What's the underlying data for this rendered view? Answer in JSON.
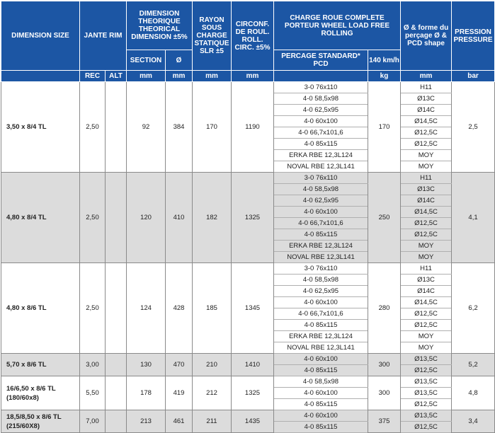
{
  "headers": {
    "dimension": "DIMENSION SIZE",
    "jante": "JANTE RIM",
    "dimension_theo": "DIMENSION THEORIQUE THEORICAL DIMENSION ±5%",
    "rayon": "RAYON SOUS CHARGE STATIQUE SLR ±5",
    "circonf": "CIRCONF. DE ROUL. ROLL. CIRC. ±5%",
    "charge": "CHARGE ROUE COMPLETE PORTEUR WHEEL LOAD FREE ROLLING",
    "forme": "Ø & forme du perçage Ø & PCD shape",
    "pression": "PRESSION PRESSURE",
    "section": "SECTION",
    "diam": "Ø",
    "percage": "PERCAGE STANDARD* PCD",
    "speed": "140 km/h",
    "rec": "REC",
    "alt": "ALT",
    "u_section": "mm",
    "u_diam": "mm",
    "u_rayon": "mm",
    "u_circ": "mm",
    "u_load": "kg",
    "u_forme": "mm",
    "u_pression": "bar"
  },
  "groups": [
    {
      "size": "3,50 x 8/4 TL",
      "rec": "2,50",
      "alt": "",
      "section": "92",
      "diameter": "384",
      "slr": "170",
      "circ": "1190",
      "load": "170",
      "pressure": "2,5",
      "shaded": false,
      "pcd": [
        {
          "pattern": "3-0 76x110",
          "shape": "H11"
        },
        {
          "pattern": "4-0 58,5x98",
          "shape": "Ø13C"
        },
        {
          "pattern": "4-0 62,5x95",
          "shape": "Ø14C"
        },
        {
          "pattern": "4-0 60x100",
          "shape": "Ø14,5C"
        },
        {
          "pattern": "4-0 66,7x101,6",
          "shape": "Ø12,5C"
        },
        {
          "pattern": "4-0 85x115",
          "shape": "Ø12,5C"
        },
        {
          "pattern": "ERKA RBE 12,3L124",
          "shape": "MOY"
        },
        {
          "pattern": "NOVAL RBE 12,3L141",
          "shape": "MOY"
        }
      ]
    },
    {
      "size": "4,80 x 8/4 TL",
      "rec": "2,50",
      "alt": "",
      "section": "120",
      "diameter": "410",
      "slr": "182",
      "circ": "1325",
      "load": "250",
      "pressure": "4,1",
      "shaded": true,
      "pcd": [
        {
          "pattern": "3-0 76x110",
          "shape": "H11"
        },
        {
          "pattern": "4-0 58,5x98",
          "shape": "Ø13C"
        },
        {
          "pattern": "4-0 62,5x95",
          "shape": "Ø14C"
        },
        {
          "pattern": "4-0 60x100",
          "shape": "Ø14,5C"
        },
        {
          "pattern": "4-0 66,7x101,6",
          "shape": "Ø12,5C"
        },
        {
          "pattern": "4-0 85x115",
          "shape": "Ø12,5C"
        },
        {
          "pattern": "ERKA RBE 12,3L124",
          "shape": "MOY"
        },
        {
          "pattern": "NOVAL RBE 12,3L141",
          "shape": "MOY"
        }
      ]
    },
    {
      "size": "4,80 x 8/6 TL",
      "rec": "2,50",
      "alt": "",
      "section": "124",
      "diameter": "428",
      "slr": "185",
      "circ": "1345",
      "load": "280",
      "pressure": "6,2",
      "shaded": false,
      "pcd": [
        {
          "pattern": "3-0 76x110",
          "shape": "H11"
        },
        {
          "pattern": "4-0 58,5x98",
          "shape": "Ø13C"
        },
        {
          "pattern": "4-0 62,5x95",
          "shape": "Ø14C"
        },
        {
          "pattern": "4-0 60x100",
          "shape": "Ø14,5C"
        },
        {
          "pattern": "4-0 66,7x101,6",
          "shape": "Ø12,5C"
        },
        {
          "pattern": "4-0 85x115",
          "shape": "Ø12,5C"
        },
        {
          "pattern": "ERKA RBE 12,3L124",
          "shape": "MOY"
        },
        {
          "pattern": "NOVAL RBE 12,3L141",
          "shape": "MOY"
        }
      ]
    },
    {
      "size": "5,70 x 8/6 TL",
      "rec": "3,00",
      "alt": "",
      "section": "130",
      "diameter": "470",
      "slr": "210",
      "circ": "1410",
      "load": "300",
      "pressure": "5,2",
      "shaded": true,
      "pcd": [
        {
          "pattern": "4-0 60x100",
          "shape": "Ø13,5C"
        },
        {
          "pattern": "4-0 85x115",
          "shape": "Ø12,5C"
        }
      ]
    },
    {
      "size": "16/6,50 x 8/6 TL (180/60x8)",
      "rec": "5,50",
      "alt": "",
      "section": "178",
      "diameter": "419",
      "slr": "212",
      "circ": "1325",
      "load": "300",
      "pressure": "4,8",
      "shaded": false,
      "pcd": [
        {
          "pattern": "4-0 58,5x98",
          "shape": "Ø13,5C"
        },
        {
          "pattern": "4-0 60x100",
          "shape": "Ø13,5C"
        },
        {
          "pattern": "4-0 85x115",
          "shape": "Ø12,5C"
        }
      ]
    },
    {
      "size": "18,5/8,50 x 8/6 TL (215/60X8)",
      "rec": "7,00",
      "alt": "",
      "section": "213",
      "diameter": "461",
      "slr": "211",
      "circ": "1435",
      "load": "375",
      "pressure": "3,4",
      "shaded": true,
      "pcd": [
        {
          "pattern": "4-0 60x100",
          "shape": "Ø13,5C"
        },
        {
          "pattern": "4-0 85x115",
          "shape": "Ø12,5C"
        }
      ]
    }
  ]
}
